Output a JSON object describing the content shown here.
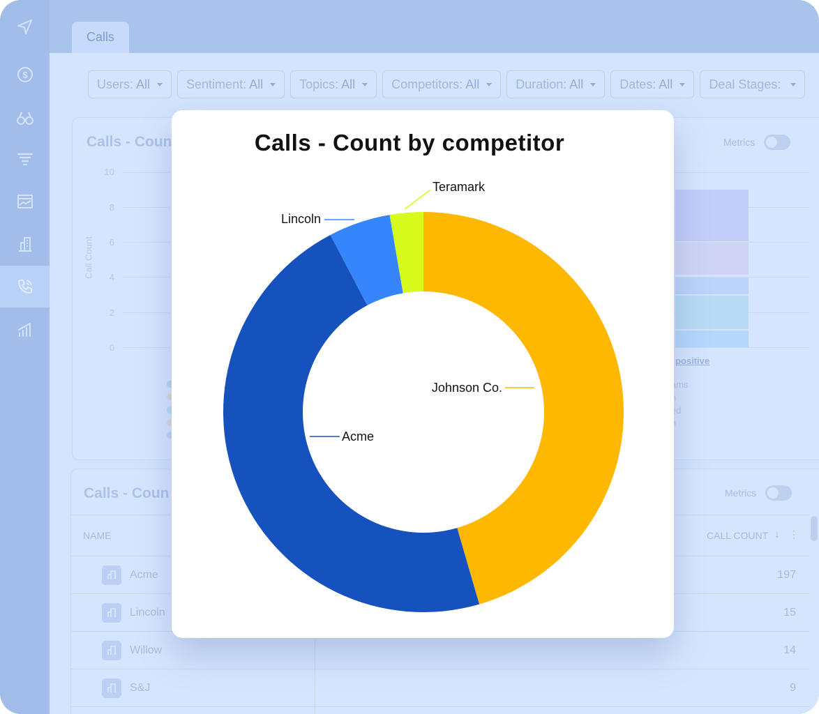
{
  "app": {
    "tab_label": "Calls"
  },
  "filters": [
    {
      "label": "Users:",
      "value": "All"
    },
    {
      "label": "Sentiment:",
      "value": "All"
    },
    {
      "label": "Topics:",
      "value": "All"
    },
    {
      "label": "Competitors:",
      "value": "All"
    },
    {
      "label": "Duration:",
      "value": "All"
    },
    {
      "label": "Dates:",
      "value": "All"
    },
    {
      "label": "Deal Stages:",
      "value": ""
    }
  ],
  "sidebar": {
    "icons": [
      "navigate-icon",
      "dollar-icon",
      "binoculars-icon",
      "funnel-icon",
      "dashboard-icon",
      "building-icon",
      "phone-icon",
      "analytics-icon"
    ],
    "active": "phone-icon"
  },
  "bg_chart": {
    "title": "Calls - Coun",
    "metrics_label": "Metrics",
    "y_axis_label": "Call Count",
    "y_ticks": [
      "10",
      "8",
      "6",
      "4",
      "2",
      "0"
    ],
    "link_text": "positive",
    "legend_fragments": [
      "ams",
      "n",
      "ed",
      "n"
    ]
  },
  "bg_table": {
    "title": "Calls - Coun",
    "metrics_label": "Metrics",
    "col_name": "NAME",
    "col_count": "CALL COUNT",
    "rows": [
      {
        "name": "Acme",
        "count": "197"
      },
      {
        "name": "Lincoln",
        "count": "15"
      },
      {
        "name": "Willow",
        "count": "14"
      },
      {
        "name": "S&J",
        "count": "9"
      }
    ]
  },
  "modal": {
    "title": "Calls - Count by competitor"
  },
  "chart_data": {
    "type": "pie",
    "title": "Calls - Count by competitor",
    "donut": true,
    "slices": [
      {
        "label": "Johnson Co.",
        "value": 45.5,
        "color": "#ffb800"
      },
      {
        "label": "Acme",
        "value": 46.8,
        "color": "#1652bd"
      },
      {
        "label": "Lincoln",
        "value": 5.0,
        "color": "#3585fd"
      },
      {
        "label": "Teramark",
        "value": 2.7,
        "color": "#d7fb1d"
      }
    ]
  }
}
